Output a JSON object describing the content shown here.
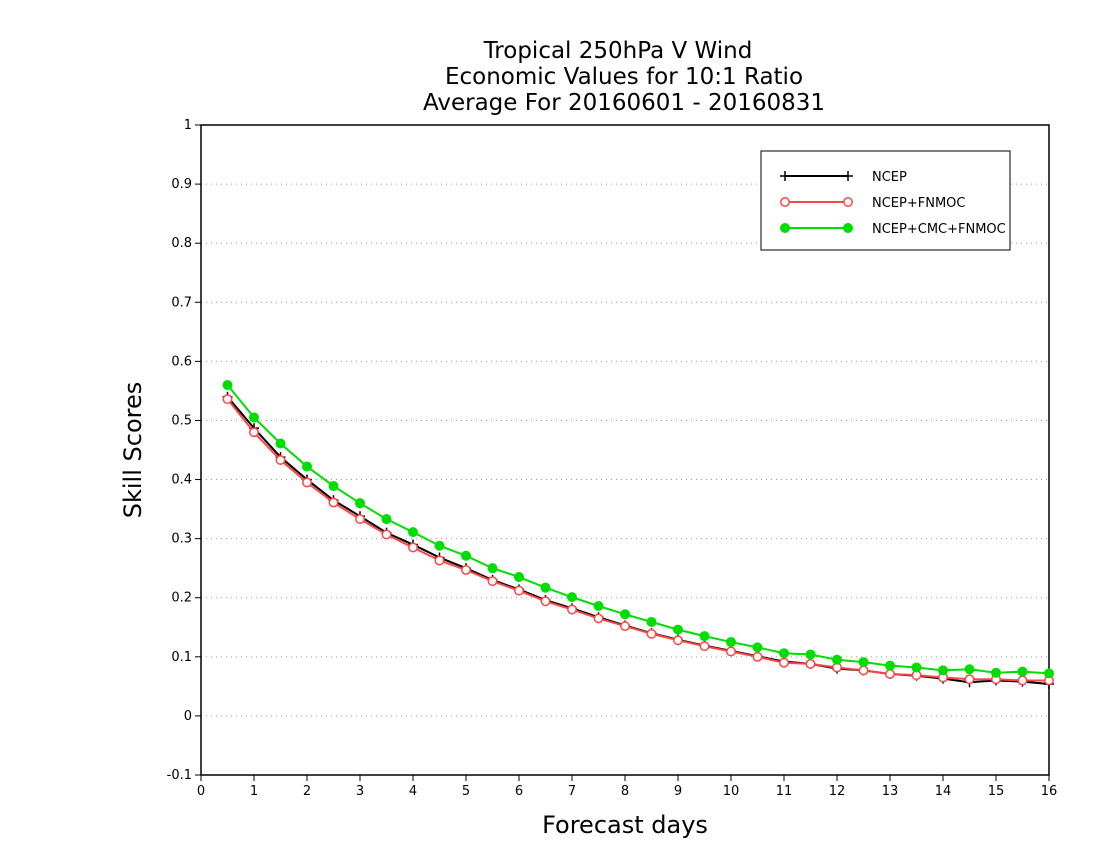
{
  "chart_data": {
    "type": "line",
    "title_lines": [
      "Tropical 250hPa V Wind",
      "Economic Values for 10:1 Ratio",
      "Average For 20160601 - 20160831"
    ],
    "xlabel": "Forecast days",
    "ylabel": "Skill Scores",
    "xlim": [
      0,
      16
    ],
    "ylim": [
      -0.1,
      1
    ],
    "x_ticks": [
      0,
      1,
      2,
      3,
      4,
      5,
      6,
      7,
      8,
      9,
      10,
      11,
      12,
      13,
      14,
      15,
      16
    ],
    "y_ticks": [
      -0.1,
      0,
      0.1,
      0.2,
      0.3,
      0.4,
      0.5,
      0.6,
      0.7,
      0.8,
      0.9,
      1
    ],
    "y_tick_labels": [
      "-0.1",
      "0",
      "0.1",
      "0.2",
      "0.3",
      "0.4",
      "0.5",
      "0.6",
      "0.7",
      "0.8",
      "0.9",
      "1"
    ],
    "grid": "horizontal dotted",
    "legend_position": "top-right",
    "x": [
      0.5,
      1,
      1.5,
      2,
      2.5,
      3,
      3.5,
      4,
      4.5,
      5,
      5.5,
      6,
      6.5,
      7,
      7.5,
      8,
      8.5,
      9,
      9.5,
      10,
      10.5,
      11,
      11.5,
      12,
      12.5,
      13,
      13.5,
      14,
      14.5,
      15,
      15.5,
      16
    ],
    "series": [
      {
        "name": "NCEP",
        "color": "#000000",
        "marker": "plus",
        "values": [
          0.54,
          0.487,
          0.438,
          0.4,
          0.365,
          0.338,
          0.31,
          0.29,
          0.268,
          0.25,
          0.23,
          0.214,
          0.196,
          0.182,
          0.167,
          0.153,
          0.14,
          0.129,
          0.119,
          0.11,
          0.101,
          0.092,
          0.088,
          0.08,
          0.077,
          0.071,
          0.068,
          0.063,
          0.057,
          0.06,
          0.058,
          0.054
        ]
      },
      {
        "name": "NCEP+FNMOC",
        "color": "#ff4444",
        "marker": "open-circle",
        "values": [
          0.536,
          0.48,
          0.433,
          0.395,
          0.361,
          0.333,
          0.307,
          0.285,
          0.263,
          0.247,
          0.228,
          0.212,
          0.194,
          0.18,
          0.165,
          0.152,
          0.139,
          0.128,
          0.118,
          0.109,
          0.1,
          0.09,
          0.088,
          0.082,
          0.077,
          0.071,
          0.069,
          0.065,
          0.062,
          0.062,
          0.06,
          0.06
        ]
      },
      {
        "name": "NCEP+CMC+FNMOC",
        "color": "#00dd00",
        "marker": "filled-circle",
        "values": [
          0.56,
          0.505,
          0.461,
          0.422,
          0.389,
          0.36,
          0.333,
          0.311,
          0.288,
          0.271,
          0.25,
          0.235,
          0.217,
          0.201,
          0.186,
          0.172,
          0.159,
          0.146,
          0.135,
          0.125,
          0.116,
          0.106,
          0.104,
          0.095,
          0.091,
          0.085,
          0.082,
          0.077,
          0.079,
          0.073,
          0.075,
          0.072
        ]
      }
    ]
  }
}
